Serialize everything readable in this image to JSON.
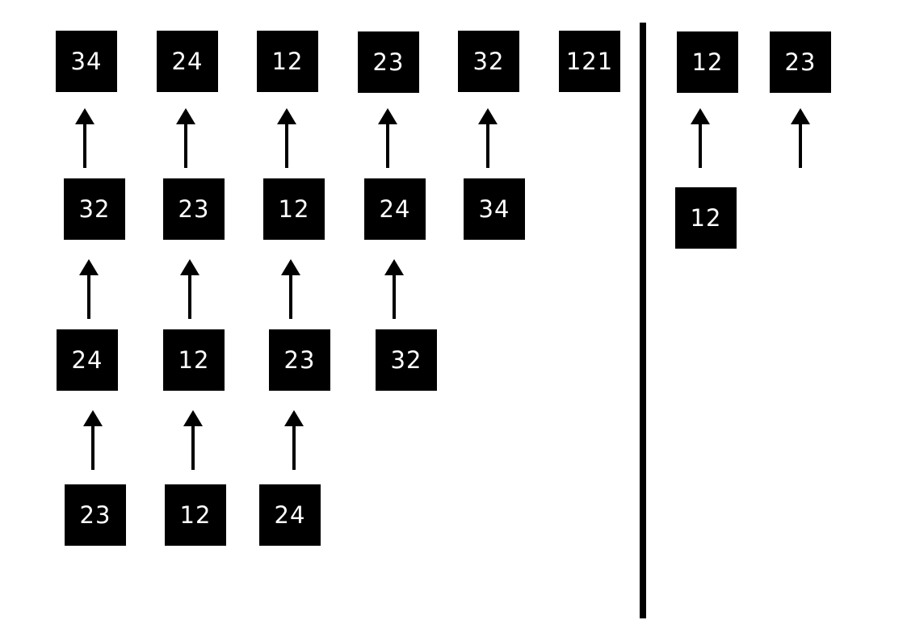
{
  "left_panel": {
    "row1": [
      "34",
      "24",
      "12",
      "23",
      "32",
      "121"
    ],
    "row2": [
      "32",
      "23",
      "12",
      "24",
      "34"
    ],
    "row3": [
      "24",
      "12",
      "23",
      "32"
    ],
    "row4": [
      "23",
      "12",
      "24"
    ]
  },
  "right_panel": {
    "row1": [
      "12",
      "23"
    ],
    "row2": [
      "12"
    ]
  }
}
